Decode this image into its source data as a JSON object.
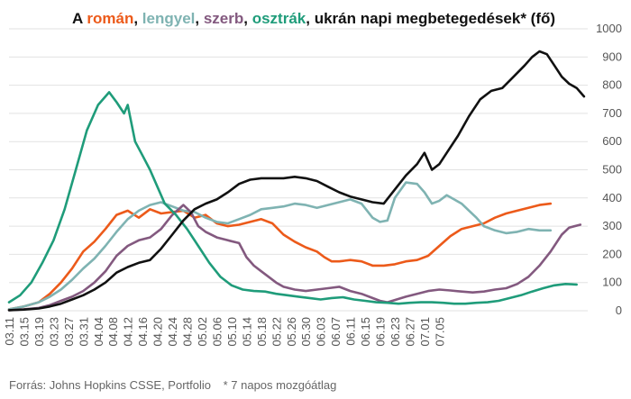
{
  "chart_data": {
    "type": "line",
    "title_parts": [
      {
        "text": "A ",
        "color": "#111111"
      },
      {
        "text": "román",
        "color": "#ec5a1a"
      },
      {
        "text": ", ",
        "color": "#111111"
      },
      {
        "text": "lengyel",
        "color": "#7fb3b2"
      },
      {
        "text": ", ",
        "color": "#111111"
      },
      {
        "text": "szerb",
        "color": "#83597f"
      },
      {
        "text": ", ",
        "color": "#111111"
      },
      {
        "text": "osztrák",
        "color": "#1f9c7a"
      },
      {
        "text": ", ",
        "color": "#111111"
      },
      {
        "text": "ukrán napi megbetegedések",
        "color": "#111111"
      },
      {
        "text": "* (fő)",
        "color": "#111111"
      }
    ],
    "ylim": [
      0,
      1000
    ],
    "yticks": [
      0,
      100,
      200,
      300,
      400,
      500,
      600,
      700,
      800,
      900,
      1000
    ],
    "x_day_range": [
      0,
      121
    ],
    "xtick_labels": [
      "03.11",
      "03.15",
      "03.19",
      "03.23",
      "03.27",
      "03.31",
      "04.04",
      "04.08",
      "04.12",
      "04.16",
      "04.20",
      "04.24",
      "04.28",
      "05.02",
      "05.06",
      "05.10",
      "05.14",
      "05.18",
      "05.22",
      "05.26",
      "05.30",
      "06.03",
      "06.07",
      "06.11",
      "06.15",
      "06.19",
      "06.23",
      "06.27",
      "07.01",
      "07.05"
    ],
    "grid": "horizontal",
    "series": [
      {
        "name": "román",
        "color": "#ec5a1a",
        "points": [
          [
            0,
            5
          ],
          [
            4,
            15
          ],
          [
            8,
            30
          ],
          [
            11,
            60
          ],
          [
            14,
            100
          ],
          [
            17,
            150
          ],
          [
            20,
            210
          ],
          [
            23,
            245
          ],
          [
            26,
            290
          ],
          [
            29,
            340
          ],
          [
            32,
            355
          ],
          [
            35,
            330
          ],
          [
            38,
            360
          ],
          [
            41,
            345
          ],
          [
            44,
            350
          ],
          [
            47,
            355
          ],
          [
            50,
            330
          ],
          [
            53,
            340
          ],
          [
            56,
            310
          ],
          [
            59,
            300
          ],
          [
            62,
            305
          ],
          [
            65,
            315
          ],
          [
            68,
            325
          ],
          [
            71,
            310
          ],
          [
            74,
            270
          ],
          [
            77,
            245
          ],
          [
            80,
            225
          ],
          [
            83,
            210
          ],
          [
            85,
            190
          ],
          [
            87,
            175
          ],
          [
            89,
            175
          ],
          [
            92,
            180
          ],
          [
            95,
            175
          ],
          [
            98,
            160
          ],
          [
            101,
            160
          ],
          [
            104,
            165
          ],
          [
            107,
            175
          ],
          [
            110,
            180
          ],
          [
            113,
            195
          ],
          [
            116,
            230
          ],
          [
            119,
            265
          ],
          [
            122,
            290
          ],
          [
            125,
            300
          ],
          [
            128,
            310
          ],
          [
            131,
            330
          ],
          [
            134,
            345
          ],
          [
            137,
            355
          ],
          [
            140,
            365
          ],
          [
            143,
            375
          ],
          [
            146,
            380
          ]
        ]
      },
      {
        "name": "lengyel",
        "color": "#7fb3b2",
        "points": [
          [
            0,
            5
          ],
          [
            4,
            15
          ],
          [
            8,
            30
          ],
          [
            11,
            50
          ],
          [
            14,
            75
          ],
          [
            17,
            110
          ],
          [
            20,
            150
          ],
          [
            23,
            185
          ],
          [
            26,
            230
          ],
          [
            29,
            280
          ],
          [
            32,
            325
          ],
          [
            35,
            355
          ],
          [
            38,
            375
          ],
          [
            41,
            385
          ],
          [
            44,
            370
          ],
          [
            47,
            355
          ],
          [
            50,
            350
          ],
          [
            53,
            330
          ],
          [
            56,
            315
          ],
          [
            59,
            310
          ],
          [
            62,
            325
          ],
          [
            65,
            340
          ],
          [
            68,
            360
          ],
          [
            71,
            365
          ],
          [
            74,
            370
          ],
          [
            77,
            380
          ],
          [
            80,
            375
          ],
          [
            83,
            365
          ],
          [
            86,
            375
          ],
          [
            89,
            385
          ],
          [
            92,
            395
          ],
          [
            95,
            380
          ],
          [
            98,
            330
          ],
          [
            100,
            315
          ],
          [
            102,
            320
          ],
          [
            104,
            400
          ],
          [
            107,
            455
          ],
          [
            110,
            450
          ],
          [
            112,
            420
          ],
          [
            114,
            380
          ],
          [
            116,
            390
          ],
          [
            118,
            410
          ],
          [
            120,
            395
          ],
          [
            122,
            380
          ],
          [
            124,
            355
          ],
          [
            126,
            330
          ],
          [
            128,
            300
          ],
          [
            131,
            285
          ],
          [
            134,
            275
          ],
          [
            137,
            280
          ],
          [
            140,
            290
          ],
          [
            143,
            285
          ],
          [
            146,
            285
          ]
        ]
      },
      {
        "name": "szerb",
        "color": "#83597f",
        "points": [
          [
            0,
            2
          ],
          [
            4,
            5
          ],
          [
            8,
            10
          ],
          [
            11,
            20
          ],
          [
            14,
            35
          ],
          [
            17,
            50
          ],
          [
            20,
            70
          ],
          [
            23,
            100
          ],
          [
            26,
            140
          ],
          [
            29,
            195
          ],
          [
            32,
            230
          ],
          [
            35,
            250
          ],
          [
            38,
            260
          ],
          [
            41,
            290
          ],
          [
            44,
            340
          ],
          [
            47,
            375
          ],
          [
            49,
            350
          ],
          [
            51,
            300
          ],
          [
            53,
            280
          ],
          [
            56,
            260
          ],
          [
            59,
            250
          ],
          [
            62,
            240
          ],
          [
            64,
            190
          ],
          [
            66,
            160
          ],
          [
            68,
            140
          ],
          [
            70,
            120
          ],
          [
            72,
            100
          ],
          [
            74,
            85
          ],
          [
            77,
            75
          ],
          [
            80,
            70
          ],
          [
            83,
            75
          ],
          [
            86,
            80
          ],
          [
            89,
            85
          ],
          [
            92,
            70
          ],
          [
            95,
            60
          ],
          [
            98,
            45
          ],
          [
            100,
            35
          ],
          [
            102,
            30
          ],
          [
            104,
            38
          ],
          [
            107,
            50
          ],
          [
            110,
            60
          ],
          [
            113,
            70
          ],
          [
            116,
            75
          ],
          [
            119,
            72
          ],
          [
            122,
            68
          ],
          [
            125,
            65
          ],
          [
            128,
            68
          ],
          [
            131,
            75
          ],
          [
            134,
            80
          ],
          [
            137,
            95
          ],
          [
            140,
            120
          ],
          [
            143,
            160
          ],
          [
            146,
            210
          ],
          [
            149,
            270
          ],
          [
            151,
            295
          ],
          [
            154,
            305
          ]
        ]
      },
      {
        "name": "osztrák",
        "color": "#1f9c7a",
        "points": [
          [
            0,
            30
          ],
          [
            3,
            55
          ],
          [
            6,
            100
          ],
          [
            9,
            170
          ],
          [
            12,
            250
          ],
          [
            15,
            360
          ],
          [
            18,
            500
          ],
          [
            21,
            640
          ],
          [
            24,
            730
          ],
          [
            27,
            775
          ],
          [
            29,
            740
          ],
          [
            31,
            700
          ],
          [
            32,
            730
          ],
          [
            34,
            600
          ],
          [
            36,
            550
          ],
          [
            38,
            500
          ],
          [
            40,
            440
          ],
          [
            42,
            380
          ],
          [
            45,
            340
          ],
          [
            48,
            290
          ],
          [
            51,
            230
          ],
          [
            54,
            170
          ],
          [
            57,
            120
          ],
          [
            60,
            90
          ],
          [
            63,
            75
          ],
          [
            66,
            70
          ],
          [
            69,
            68
          ],
          [
            72,
            60
          ],
          [
            75,
            55
          ],
          [
            78,
            50
          ],
          [
            81,
            45
          ],
          [
            84,
            40
          ],
          [
            87,
            45
          ],
          [
            90,
            48
          ],
          [
            93,
            40
          ],
          [
            96,
            35
          ],
          [
            99,
            30
          ],
          [
            102,
            28
          ],
          [
            105,
            25
          ],
          [
            108,
            28
          ],
          [
            111,
            30
          ],
          [
            114,
            30
          ],
          [
            117,
            28
          ],
          [
            120,
            25
          ],
          [
            123,
            25
          ],
          [
            126,
            28
          ],
          [
            129,
            30
          ],
          [
            132,
            35
          ],
          [
            135,
            45
          ],
          [
            138,
            55
          ],
          [
            141,
            68
          ],
          [
            144,
            80
          ],
          [
            147,
            90
          ],
          [
            150,
            95
          ],
          [
            153,
            93
          ]
        ]
      },
      {
        "name": "ukrán",
        "color": "#111111",
        "points": [
          [
            0,
            2
          ],
          [
            4,
            4
          ],
          [
            8,
            8
          ],
          [
            11,
            15
          ],
          [
            14,
            25
          ],
          [
            17,
            40
          ],
          [
            20,
            55
          ],
          [
            23,
            75
          ],
          [
            26,
            100
          ],
          [
            29,
            135
          ],
          [
            32,
            155
          ],
          [
            35,
            170
          ],
          [
            38,
            180
          ],
          [
            41,
            220
          ],
          [
            44,
            270
          ],
          [
            47,
            320
          ],
          [
            50,
            360
          ],
          [
            53,
            380
          ],
          [
            56,
            395
          ],
          [
            59,
            420
          ],
          [
            62,
            450
          ],
          [
            65,
            465
          ],
          [
            68,
            470
          ],
          [
            71,
            470
          ],
          [
            74,
            470
          ],
          [
            77,
            475
          ],
          [
            80,
            470
          ],
          [
            83,
            460
          ],
          [
            86,
            440
          ],
          [
            89,
            420
          ],
          [
            92,
            405
          ],
          [
            95,
            395
          ],
          [
            98,
            385
          ],
          [
            101,
            380
          ],
          [
            104,
            430
          ],
          [
            107,
            480
          ],
          [
            110,
            520
          ],
          [
            112,
            560
          ],
          [
            114,
            500
          ],
          [
            116,
            520
          ],
          [
            118,
            560
          ],
          [
            121,
            620
          ],
          [
            124,
            690
          ],
          [
            127,
            750
          ],
          [
            130,
            780
          ],
          [
            133,
            790
          ],
          [
            136,
            830
          ],
          [
            139,
            870
          ],
          [
            141,
            900
          ],
          [
            143,
            920
          ],
          [
            145,
            910
          ],
          [
            147,
            870
          ],
          [
            149,
            830
          ],
          [
            151,
            805
          ],
          [
            153,
            790
          ],
          [
            155,
            760
          ]
        ]
      }
    ],
    "source_note": "Forrás: Johns Hopkins CSSE, Portfolio",
    "footnote": "* 7 napos mozgóátlag"
  }
}
